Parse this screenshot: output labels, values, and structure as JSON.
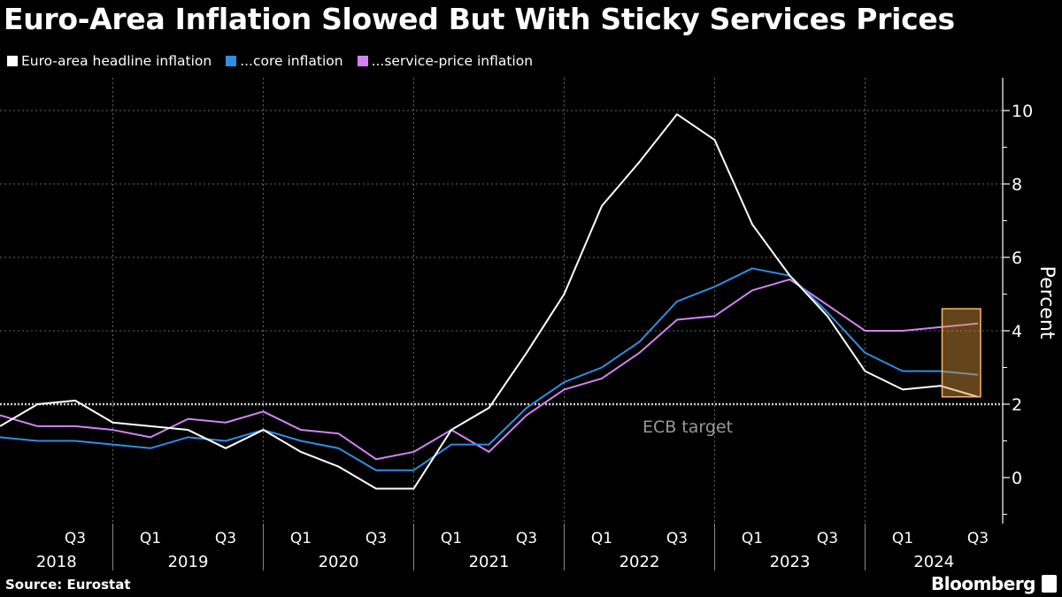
{
  "title": "Euro-Area Inflation Slowed But With Sticky Services Prices",
  "source": "Source: Eurostat",
  "brand": "Bloomberg",
  "chart_data": {
    "type": "line",
    "title": "Euro-Area Inflation Slowed But With Sticky Services Prices",
    "ylabel": "Percent",
    "ylim": [
      -1.3,
      10.9
    ],
    "yticks": [
      0,
      2,
      4,
      6,
      8,
      10
    ],
    "grid": true,
    "legend_placement": "top-left",
    "x": [
      "Q1 2018",
      "Q2 2018",
      "Q3 2018",
      "Q4 2018",
      "Q1 2019",
      "Q2 2019",
      "Q3 2019",
      "Q4 2019",
      "Q1 2020",
      "Q2 2020",
      "Q3 2020",
      "Q4 2020",
      "Q1 2021",
      "Q2 2021",
      "Q3 2021",
      "Q4 2021",
      "Q1 2022",
      "Q2 2022",
      "Q3 2022",
      "Q4 2022",
      "Q1 2023",
      "Q2 2023",
      "Q3 2023",
      "Q4 2023",
      "Q1 2024",
      "Q2 2024",
      "Q3 2024"
    ],
    "quarter_ticks": [
      {
        "i": 2,
        "label": "Q3"
      },
      {
        "i": 4,
        "label": "Q1"
      },
      {
        "i": 6,
        "label": "Q3"
      },
      {
        "i": 8,
        "label": "Q1"
      },
      {
        "i": 10,
        "label": "Q3"
      },
      {
        "i": 12,
        "label": "Q1"
      },
      {
        "i": 14,
        "label": "Q3"
      },
      {
        "i": 16,
        "label": "Q1"
      },
      {
        "i": 18,
        "label": "Q3"
      },
      {
        "i": 20,
        "label": "Q1"
      },
      {
        "i": 22,
        "label": "Q3"
      },
      {
        "i": 24,
        "label": "Q1"
      },
      {
        "i": 26,
        "label": "Q3"
      }
    ],
    "year_labels": [
      "2018",
      "2019",
      "2020",
      "2021",
      "2022",
      "2023",
      "2024"
    ],
    "series": [
      {
        "name": "Euro-area headline inflation",
        "color": "#ffffff",
        "values": [
          1.4,
          2.0,
          2.1,
          1.5,
          1.4,
          1.3,
          0.8,
          1.3,
          0.7,
          0.3,
          -0.3,
          -0.3,
          1.3,
          1.9,
          3.4,
          5.0,
          7.4,
          8.6,
          9.9,
          9.2,
          6.9,
          5.5,
          4.4,
          2.9,
          2.4,
          2.5,
          2.2
        ]
      },
      {
        "name": "...core inflation",
        "color": "#2f8de4",
        "values": [
          1.1,
          1.0,
          1.0,
          0.9,
          0.8,
          1.1,
          1.0,
          1.3,
          1.0,
          0.8,
          0.2,
          0.2,
          0.9,
          0.9,
          1.9,
          2.6,
          3.0,
          3.7,
          4.8,
          5.2,
          5.7,
          5.5,
          4.5,
          3.4,
          2.9,
          2.9,
          2.8
        ]
      },
      {
        "name": "...service-price inflation",
        "color": "#d283f5",
        "values": [
          1.7,
          1.4,
          1.4,
          1.3,
          1.1,
          1.6,
          1.5,
          1.8,
          1.3,
          1.2,
          0.5,
          0.7,
          1.3,
          0.7,
          1.7,
          2.4,
          2.7,
          3.4,
          4.3,
          4.4,
          5.1,
          5.4,
          4.7,
          4.0,
          4.0,
          4.1,
          4.2
        ]
      }
    ],
    "reference_line": {
      "value": 2,
      "label": "ECB target"
    },
    "highlight": {
      "from_index": 25,
      "to_index": 26,
      "ymin": 2.2,
      "ymax": 4.6,
      "color": "#f7b869"
    }
  }
}
